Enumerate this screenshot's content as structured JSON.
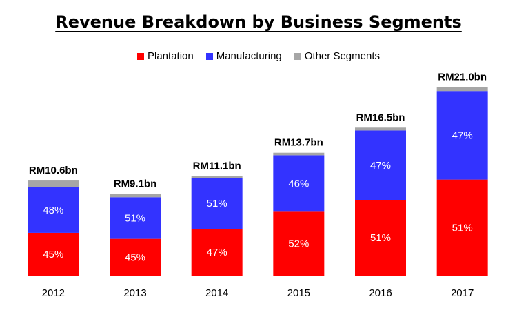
{
  "chart_data": {
    "type": "bar",
    "stacked": true,
    "title": "Revenue Breakdown by Business Segments",
    "xlabel": "",
    "ylabel": "",
    "grid": false,
    "legend_position": "top",
    "categories": [
      "2012",
      "2013",
      "2014",
      "2015",
      "2016",
      "2017"
    ],
    "totals": [
      10.6,
      9.1,
      11.1,
      13.7,
      16.5,
      21.0
    ],
    "total_labels": [
      "RM10.6bn",
      "RM9.1bn",
      "RM11.1bn",
      "RM13.7bn",
      "RM16.5bn",
      "RM21.0bn"
    ],
    "ylim": [
      0,
      21.9
    ],
    "series": [
      {
        "name": "Plantation",
        "color": "#ff0000",
        "values": [
          4.77,
          4.1,
          5.22,
          7.12,
          8.42,
          10.71
        ],
        "labels": [
          "45%",
          "45%",
          "47%",
          "52%",
          "51%",
          "51%"
        ]
      },
      {
        "name": "Manufacturing",
        "color": "#3333ff",
        "values": [
          5.09,
          4.64,
          5.66,
          6.3,
          7.76,
          9.87
        ],
        "labels": [
          "48%",
          "51%",
          "51%",
          "46%",
          "47%",
          "47%"
        ]
      },
      {
        "name": "Other Segments",
        "color": "#a6a6a6",
        "values": [
          0.74,
          0.36,
          0.22,
          0.28,
          0.32,
          0.42
        ],
        "labels": [
          "",
          "",
          "",
          "",
          "",
          ""
        ]
      }
    ]
  }
}
